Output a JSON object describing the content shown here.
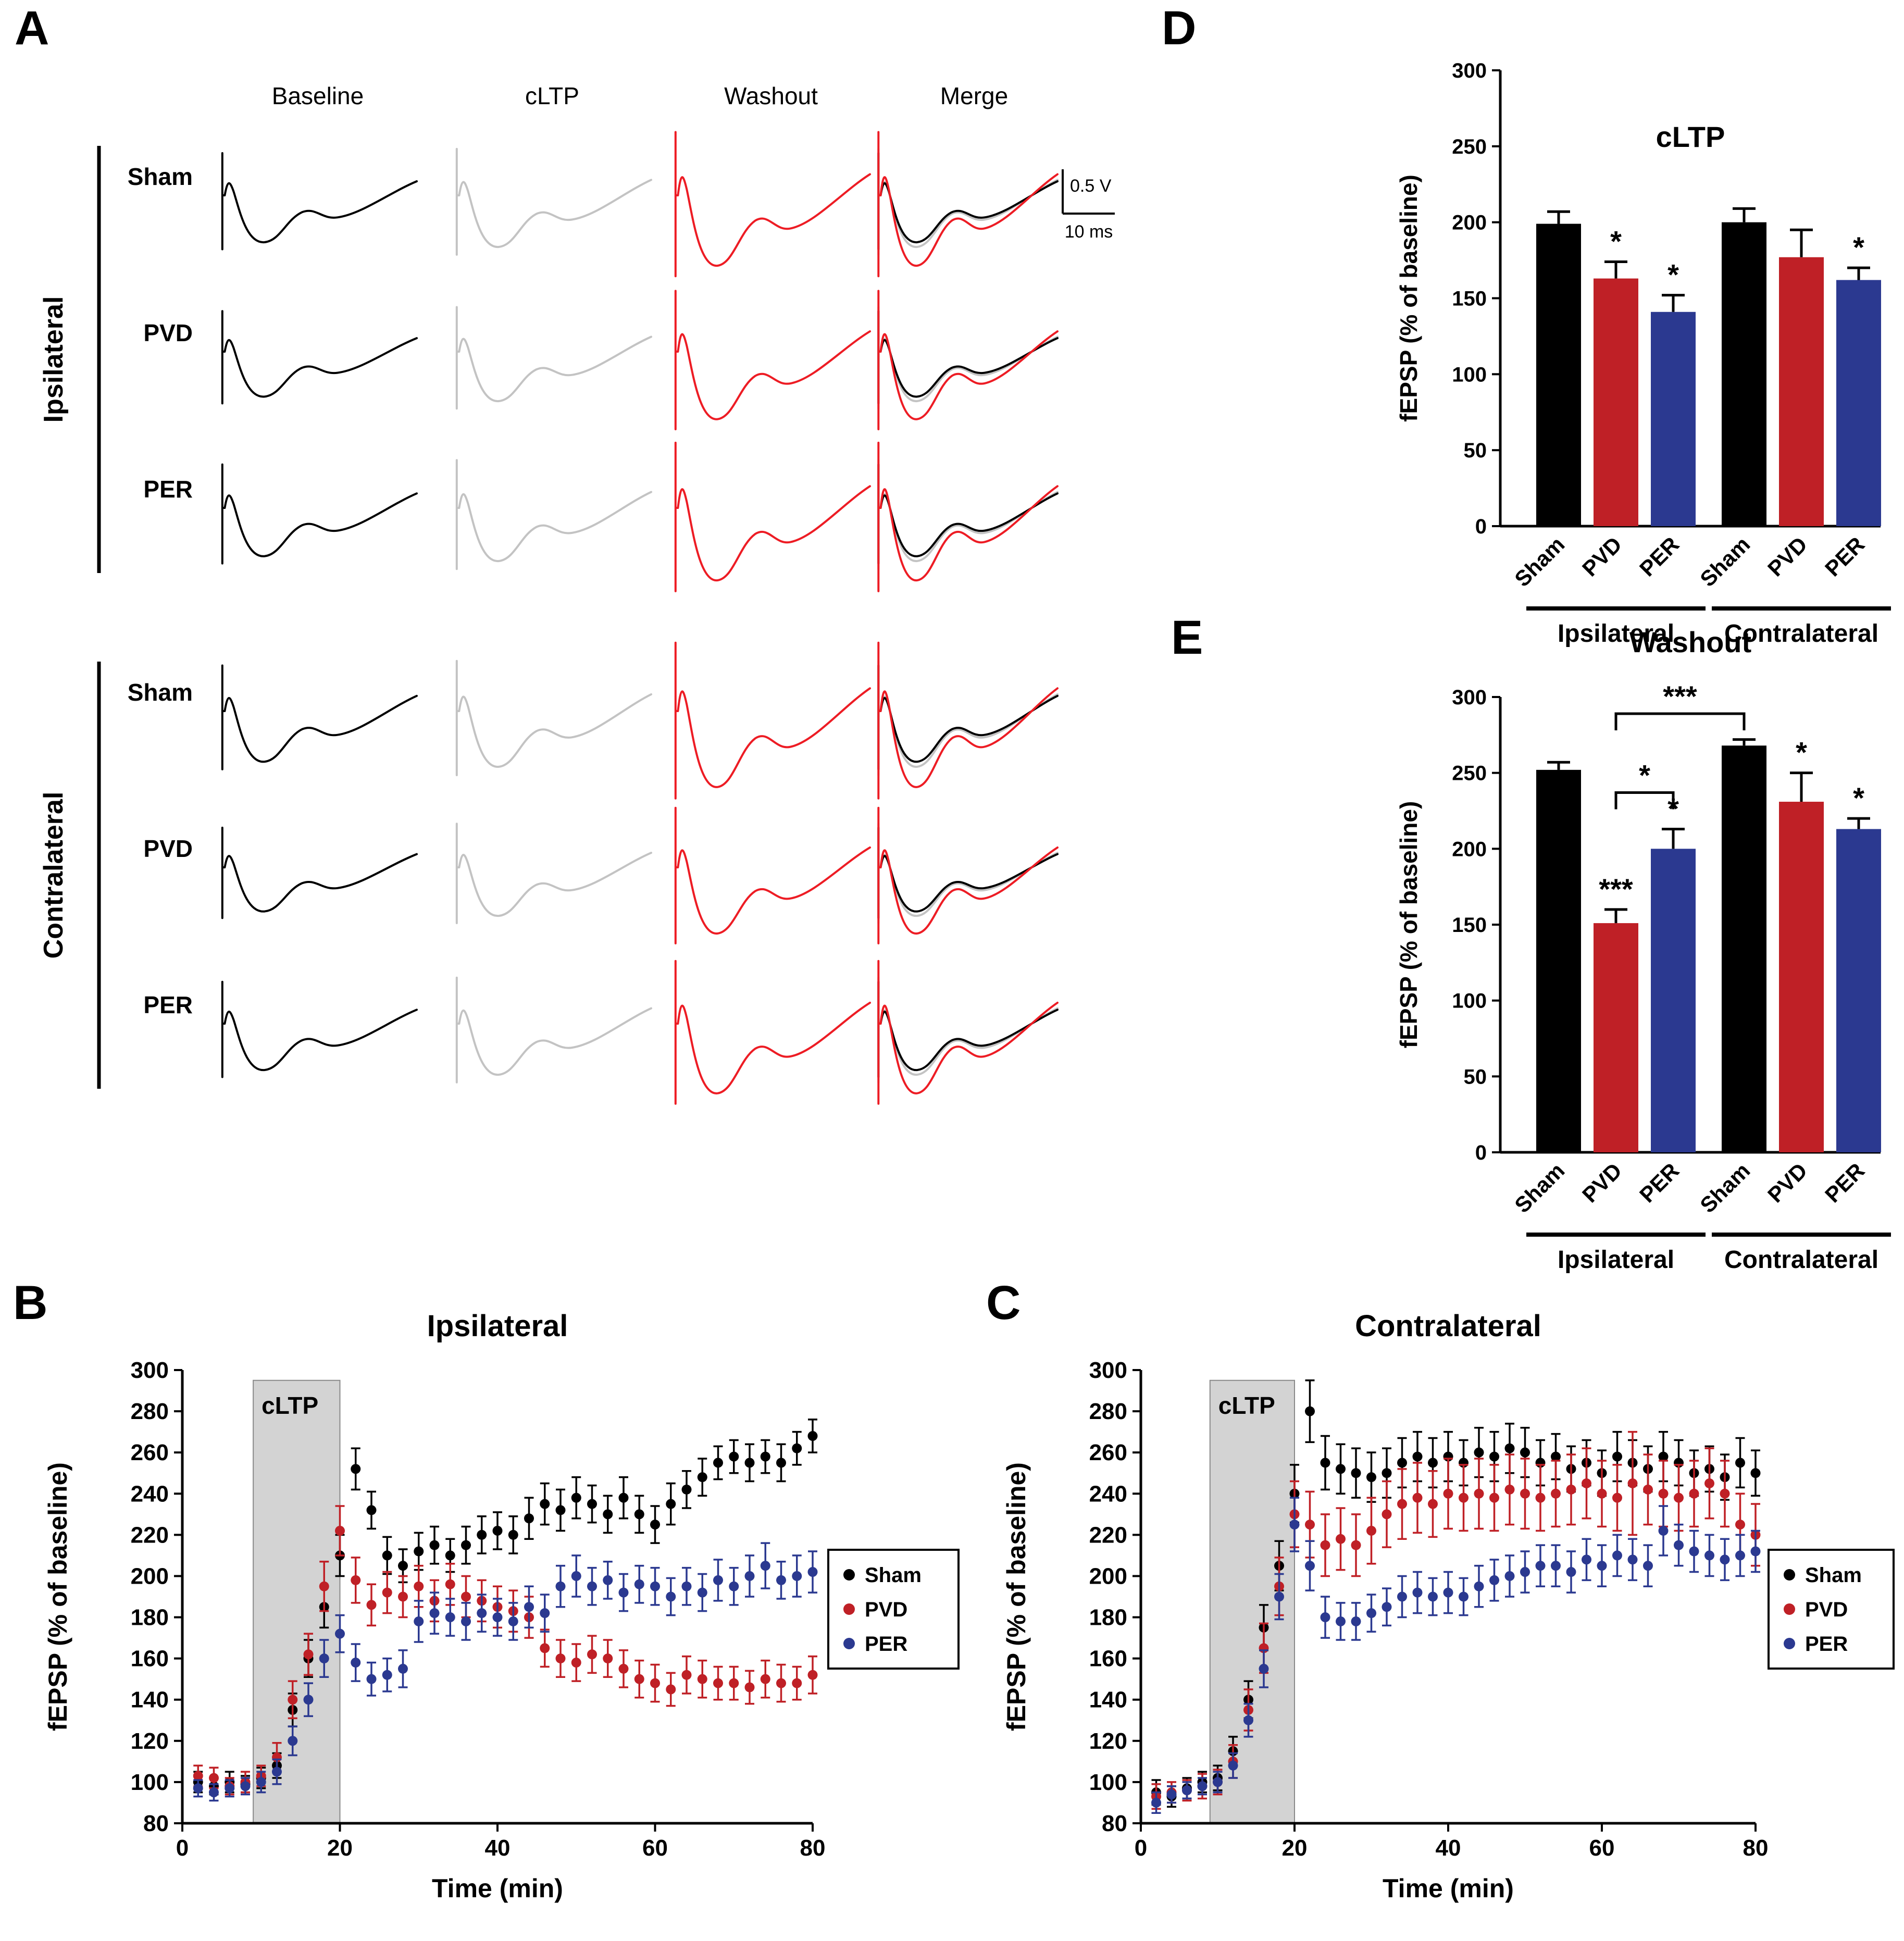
{
  "panel_a": {
    "label": "A",
    "columns": [
      "Baseline",
      "cLTP",
      "Washout",
      "Merge"
    ],
    "groups": [
      {
        "name": "Ipsilateral",
        "rows": [
          "Sham",
          "PVD",
          "PER"
        ]
      },
      {
        "name": "Contralateral",
        "rows": [
          "Sham",
          "PVD",
          "PER"
        ]
      }
    ],
    "scale_bar": {
      "voltage": "0.5 V",
      "time": "10 ms"
    },
    "trace_colors": {
      "baseline": "#000000",
      "cltp": "#c3c3c3",
      "washout": "#ed1c24"
    }
  },
  "colors": {
    "sham": "#000000",
    "pvd": "#bf2026",
    "per": "#2b3990"
  },
  "chart_data": [
    {
      "id": "B",
      "panel_label": "B",
      "type": "scatter",
      "title": "Ipsilateral",
      "xlabel": "Time (min)",
      "ylabel": "fEPSP (% of baseline)",
      "xlim": [
        0,
        80
      ],
      "ylim": [
        80,
        300
      ],
      "xticks": [
        0,
        20,
        40,
        60,
        80
      ],
      "yticks": [
        80,
        100,
        120,
        140,
        160,
        180,
        200,
        220,
        240,
        260,
        280,
        300
      ],
      "shade": {
        "label": "cLTP",
        "x0": 9,
        "x1": 20,
        "y0": 80,
        "y1": 295
      },
      "legend": [
        {
          "name": "Sham",
          "color": "#000000"
        },
        {
          "name": "PVD",
          "color": "#bf2026"
        },
        {
          "name": "PER",
          "color": "#2b3990"
        }
      ],
      "x": [
        2,
        4,
        6,
        8,
        10,
        12,
        14,
        16,
        18,
        20,
        22,
        24,
        26,
        28,
        30,
        32,
        34,
        36,
        38,
        40,
        42,
        44,
        46,
        48,
        50,
        52,
        54,
        56,
        58,
        60,
        62,
        64,
        66,
        68,
        70,
        72,
        74,
        76,
        78,
        80
      ],
      "series": [
        {
          "name": "Sham",
          "color": "#000000",
          "y": [
            100,
            98,
            100,
            99,
            102,
            108,
            135,
            160,
            185,
            210,
            252,
            232,
            210,
            205,
            212,
            215,
            210,
            215,
            220,
            222,
            220,
            228,
            235,
            232,
            238,
            235,
            230,
            238,
            230,
            225,
            235,
            242,
            248,
            255,
            258,
            255,
            258,
            255,
            262,
            268
          ],
          "err": [
            5,
            4,
            5,
            4,
            5,
            6,
            8,
            9,
            10,
            10,
            10,
            9,
            9,
            8,
            9,
            9,
            8,
            9,
            9,
            9,
            9,
            10,
            10,
            10,
            10,
            9,
            9,
            10,
            9,
            9,
            10,
            9,
            9,
            8,
            8,
            9,
            8,
            9,
            8,
            8
          ]
        },
        {
          "name": "PVD",
          "color": "#bf2026",
          "y": [
            103,
            102,
            98,
            100,
            103,
            112,
            140,
            162,
            195,
            222,
            198,
            186,
            192,
            190,
            195,
            188,
            196,
            190,
            188,
            185,
            183,
            180,
            165,
            160,
            158,
            162,
            160,
            155,
            150,
            148,
            145,
            152,
            150,
            148,
            148,
            146,
            150,
            148,
            148,
            152
          ],
          "err": [
            5,
            5,
            4,
            5,
            5,
            7,
            9,
            10,
            12,
            12,
            11,
            10,
            10,
            10,
            10,
            10,
            10,
            10,
            10,
            10,
            10,
            10,
            9,
            9,
            9,
            9,
            9,
            9,
            9,
            9,
            8,
            9,
            9,
            8,
            8,
            8,
            9,
            9,
            8,
            9
          ]
        },
        {
          "name": "PER",
          "color": "#2b3990",
          "y": [
            97,
            95,
            97,
            98,
            100,
            105,
            120,
            140,
            160,
            172,
            158,
            150,
            152,
            155,
            178,
            182,
            180,
            178,
            182,
            180,
            178,
            185,
            182,
            195,
            200,
            195,
            198,
            192,
            196,
            195,
            190,
            195,
            192,
            198,
            195,
            200,
            205,
            198,
            200,
            202
          ],
          "err": [
            4,
            4,
            4,
            4,
            5,
            6,
            7,
            8,
            9,
            9,
            9,
            8,
            8,
            9,
            10,
            10,
            9,
            9,
            9,
            9,
            9,
            10,
            9,
            10,
            10,
            9,
            9,
            9,
            9,
            9,
            9,
            9,
            9,
            10,
            9,
            10,
            11,
            9,
            10,
            10
          ]
        }
      ]
    },
    {
      "id": "C",
      "panel_label": "C",
      "type": "scatter",
      "title": "Contralateral",
      "xlabel": "Time (min)",
      "ylabel": "fEPSP (% of baseline)",
      "xlim": [
        0,
        80
      ],
      "ylim": [
        80,
        300
      ],
      "xticks": [
        0,
        20,
        40,
        60,
        80
      ],
      "yticks": [
        80,
        100,
        120,
        140,
        160,
        180,
        200,
        220,
        240,
        260,
        280,
        300
      ],
      "shade": {
        "label": "cLTP",
        "x0": 9,
        "x1": 20,
        "y0": 80,
        "y1": 295
      },
      "legend": [
        {
          "name": "Sham",
          "color": "#000000"
        },
        {
          "name": "PVD",
          "color": "#bf2026"
        },
        {
          "name": "PER",
          "color": "#2b3990"
        }
      ],
      "x": [
        2,
        4,
        6,
        8,
        10,
        12,
        14,
        16,
        18,
        20,
        22,
        24,
        26,
        28,
        30,
        32,
        34,
        36,
        38,
        40,
        42,
        44,
        46,
        48,
        50,
        52,
        54,
        56,
        58,
        60,
        62,
        64,
        66,
        68,
        70,
        72,
        74,
        76,
        78,
        80
      ],
      "series": [
        {
          "name": "Sham",
          "color": "#000000",
          "y": [
            95,
            93,
            97,
            100,
            102,
            115,
            140,
            175,
            205,
            240,
            280,
            255,
            252,
            250,
            248,
            250,
            255,
            258,
            255,
            258,
            255,
            260,
            258,
            262,
            260,
            255,
            258,
            252,
            255,
            250,
            258,
            255,
            252,
            258,
            255,
            250,
            252,
            248,
            255,
            250
          ],
          "err": [
            6,
            5,
            5,
            5,
            6,
            7,
            9,
            11,
            12,
            14,
            15,
            13,
            12,
            12,
            12,
            12,
            12,
            12,
            12,
            12,
            11,
            12,
            12,
            12,
            12,
            11,
            11,
            11,
            11,
            11,
            12,
            11,
            11,
            12,
            11,
            11,
            11,
            11,
            12,
            11
          ]
        },
        {
          "name": "PVD",
          "color": "#bf2026",
          "y": [
            93,
            95,
            96,
            98,
            100,
            110,
            135,
            165,
            195,
            230,
            225,
            215,
            218,
            215,
            222,
            230,
            235,
            238,
            235,
            240,
            238,
            240,
            238,
            242,
            240,
            238,
            240,
            242,
            245,
            240,
            238,
            245,
            242,
            240,
            238,
            240,
            245,
            240,
            225,
            220
          ],
          "err": [
            6,
            5,
            5,
            6,
            6,
            8,
            10,
            12,
            14,
            16,
            16,
            15,
            15,
            15,
            16,
            16,
            17,
            17,
            16,
            17,
            16,
            17,
            16,
            17,
            17,
            16,
            16,
            17,
            17,
            16,
            16,
            25,
            17,
            16,
            16,
            16,
            17,
            16,
            15,
            15
          ]
        },
        {
          "name": "PER",
          "color": "#2b3990",
          "y": [
            90,
            94,
            96,
            98,
            100,
            108,
            130,
            155,
            190,
            225,
            205,
            180,
            178,
            178,
            182,
            185,
            190,
            192,
            190,
            192,
            190,
            195,
            198,
            200,
            202,
            205,
            205,
            202,
            208,
            205,
            210,
            208,
            205,
            222,
            215,
            212,
            210,
            208,
            210,
            212
          ],
          "err": [
            5,
            4,
            4,
            4,
            5,
            6,
            8,
            9,
            11,
            13,
            12,
            10,
            9,
            9,
            9,
            9,
            10,
            10,
            9,
            10,
            9,
            10,
            10,
            10,
            10,
            10,
            10,
            10,
            10,
            10,
            10,
            10,
            10,
            12,
            10,
            10,
            10,
            10,
            10,
            10
          ]
        }
      ]
    },
    {
      "id": "D",
      "panel_label": "D",
      "type": "bar",
      "title": "cLTP",
      "ylabel": "fEPSP (% of baseline)",
      "ylim": [
        0,
        300
      ],
      "yticks": [
        0,
        50,
        100,
        150,
        200,
        250,
        300
      ],
      "group_labels": [
        "Ipsilateral",
        "Contralateral"
      ],
      "categories": [
        "Sham",
        "PVD",
        "PER",
        "Sham",
        "PVD",
        "PER"
      ],
      "values": [
        199,
        163,
        141,
        200,
        177,
        162
      ],
      "errors": [
        8,
        11,
        11,
        9,
        18,
        8
      ],
      "sig": [
        "",
        "*",
        "*",
        "",
        "",
        "*"
      ],
      "bar_colors": [
        "#000000",
        "#bf2026",
        "#2b3990",
        "#000000",
        "#bf2026",
        "#2b3990"
      ],
      "brackets": []
    },
    {
      "id": "E",
      "panel_label": "E",
      "type": "bar",
      "title": "Washout",
      "ylabel": "fEPSP (% of baseline)",
      "ylim": [
        0,
        300
      ],
      "yticks": [
        0,
        50,
        100,
        150,
        200,
        250,
        300
      ],
      "group_labels": [
        "Ipsilateral",
        "Contralateral"
      ],
      "categories": [
        "Sham",
        "PVD",
        "PER",
        "Sham",
        "PVD",
        "PER"
      ],
      "values": [
        252,
        151,
        200,
        268,
        231,
        213
      ],
      "errors": [
        5,
        9,
        13,
        4,
        19,
        7
      ],
      "sig": [
        "",
        "***",
        "*",
        "",
        "*",
        "*"
      ],
      "bar_colors": [
        "#000000",
        "#bf2026",
        "#2b3990",
        "#000000",
        "#bf2026",
        "#2b3990"
      ],
      "brackets": [
        {
          "from": 1,
          "to": 2,
          "y": 237,
          "label": "*"
        },
        {
          "from": 1,
          "to": 3,
          "y": 289,
          "label": "***"
        }
      ]
    }
  ]
}
